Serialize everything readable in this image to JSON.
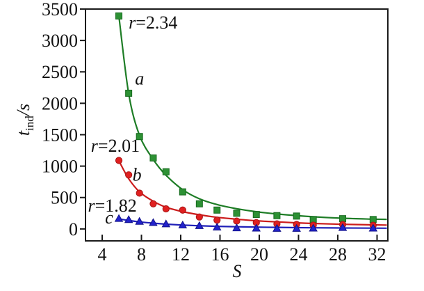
{
  "figure": {
    "background": "#ffffff",
    "xlabel": "S",
    "ylabel": {
      "base": "t",
      "subscript": "ind",
      "unit": "/s"
    }
  },
  "chart_data": {
    "type": "scatter",
    "title": "",
    "xlabel": "S",
    "ylabel": "t_ind/s",
    "xlim": [
      2.3,
      33.1
    ],
    "ylim": [
      -190,
      3500
    ],
    "xticks": [
      4,
      8,
      12,
      16,
      20,
      24,
      28,
      32
    ],
    "yticks": [
      0,
      500,
      1000,
      1500,
      2000,
      2500,
      3000,
      3500
    ],
    "grid": false,
    "legend_position": "none",
    "axis_color": "#1a1a1a",
    "x": [
      5.7,
      6.7,
      7.8,
      9.2,
      10.5,
      12.2,
      13.9,
      15.7,
      17.7,
      19.7,
      21.8,
      23.8,
      25.5,
      28.5,
      31.6
    ],
    "fit_x": [
      5.7,
      6.7,
      7.8,
      9.2,
      10.5,
      12.2,
      13.9,
      15.7,
      17.7,
      19.7,
      21.8,
      23.8,
      25.5,
      28.5,
      31.6,
      33.0
    ],
    "series": [
      {
        "name": "a",
        "label": "r=2.34",
        "marker": "square",
        "marker_color": "#2d9134",
        "marker_edge": "#176a1f",
        "line_color": "#1e7d26",
        "values": [
          3390,
          2160,
          1470,
          1130,
          910,
          590,
          400,
          300,
          250,
          230,
          212,
          205,
          150,
          163,
          150
        ],
        "fit_values": [
          3390,
          2155,
          1490,
          1105,
          855,
          625,
          480,
          388,
          322,
          274,
          238,
          212,
          193,
          170,
          156,
          152
        ]
      },
      {
        "name": "b",
        "label": "r=2.01",
        "marker": "circle",
        "marker_color": "#e02020",
        "marker_edge": "#a81414",
        "line_color": "#cc1c1c",
        "values": [
          1090,
          860,
          570,
          400,
          320,
          300,
          190,
          140,
          125,
          100,
          80,
          72,
          60,
          70,
          58
        ],
        "fit_values": [
          1085,
          800,
          590,
          440,
          345,
          275,
          225,
          185,
          155,
          130,
          112,
          97,
          87,
          74,
          65,
          62
        ]
      },
      {
        "name": "c",
        "label": "r=1.82",
        "marker": "triangle-up",
        "marker_color": "#2222cc",
        "marker_edge": "#111189",
        "line_color": "#2020b8",
        "values": [
          165,
          148,
          120,
          100,
          80,
          62,
          52,
          28,
          16,
          12,
          8,
          8,
          12,
          22,
          12
        ],
        "fit_values": [
          160,
          135,
          112,
          92,
          76,
          62,
          51,
          42,
          35,
          29,
          25,
          21,
          18,
          15,
          13,
          12
        ]
      }
    ],
    "annotations": [
      {
        "text": "r=2.34",
        "s": 6.7,
        "t": 3290,
        "anchor": "start",
        "style": "r-label"
      },
      {
        "text": "a",
        "s": 7.8,
        "t": 2400,
        "anchor": "middle",
        "style": "italic"
      },
      {
        "text": "r=2.01",
        "s": 2.85,
        "t": 1330,
        "anchor": "start",
        "style": "r-label"
      },
      {
        "text": "b",
        "s": 7.55,
        "t": 870,
        "anchor": "middle",
        "style": "italic"
      },
      {
        "text": "r=1.82",
        "s": 2.55,
        "t": 375,
        "anchor": "start",
        "style": "r-label"
      },
      {
        "text": "c",
        "s": 4.7,
        "t": 185,
        "anchor": "middle",
        "style": "italic"
      }
    ]
  }
}
